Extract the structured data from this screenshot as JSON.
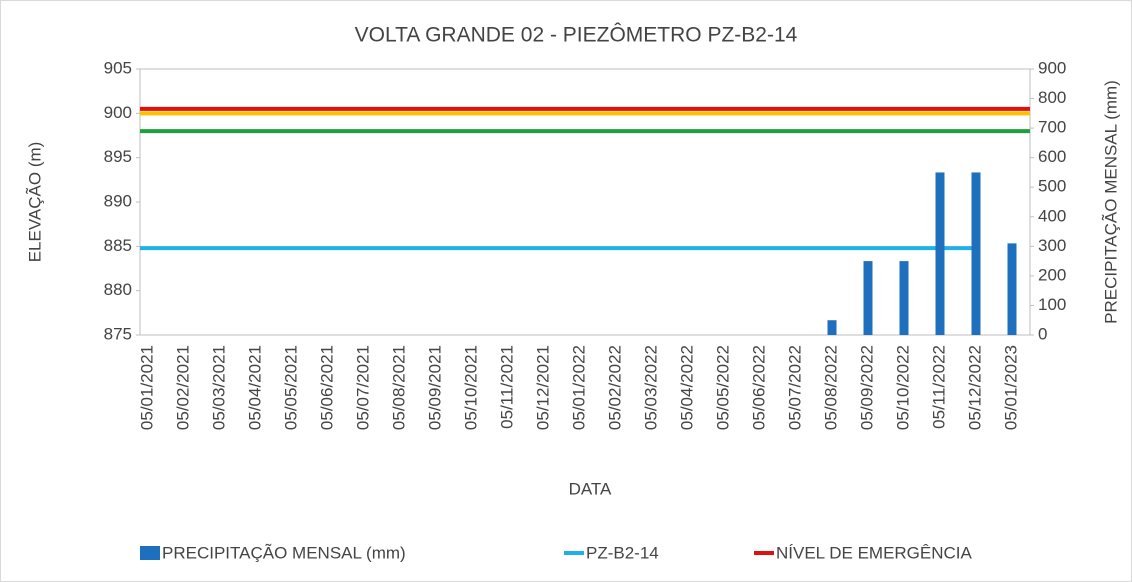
{
  "chart_data": {
    "type": "combo",
    "title": "VOLTA GRANDE 02 - PIEZÔMETRO PZ-B2-14",
    "xlabel": "DATA",
    "ylabel": "ELEVAÇÃO (m)",
    "y2label": "PRECIPITAÇÃO MENSAL (mm)",
    "categories": [
      "05/01/2021",
      "05/02/2021",
      "05/03/2021",
      "05/04/2021",
      "05/05/2021",
      "05/06/2021",
      "05/07/2021",
      "05/08/2021",
      "05/09/2021",
      "05/10/2021",
      "05/11/2021",
      "05/12/2021",
      "05/01/2022",
      "05/02/2022",
      "05/03/2022",
      "05/04/2022",
      "05/05/2022",
      "05/06/2022",
      "05/07/2022",
      "05/08/2022",
      "05/09/2022",
      "05/10/2022",
      "05/11/2022",
      "05/12/2022",
      "05/01/2023"
    ],
    "ylim": [
      875,
      905
    ],
    "yticks": [
      875,
      880,
      885,
      890,
      895,
      900,
      905
    ],
    "y2lim": [
      0,
      900
    ],
    "y2ticks": [
      0,
      100,
      200,
      300,
      400,
      500,
      600,
      700,
      800,
      900
    ],
    "series": [
      {
        "name": "PRECIPITAÇÃO MENSAL (mm)",
        "type": "bar",
        "axis": "y2",
        "color": "#1f6fbf",
        "values": [
          null,
          null,
          null,
          null,
          null,
          null,
          null,
          null,
          null,
          null,
          null,
          null,
          null,
          null,
          null,
          null,
          null,
          null,
          null,
          50,
          250,
          250,
          550,
          550,
          310
        ]
      },
      {
        "name": "PZ-B2-14",
        "type": "line",
        "color": "#1fb0ea",
        "values": [
          884.8,
          884.8,
          884.8,
          884.8,
          884.8,
          884.8,
          884.8,
          884.8,
          884.8,
          884.8,
          884.8,
          884.8,
          884.8,
          884.8,
          884.8,
          884.8,
          884.8,
          884.8,
          884.8,
          884.8,
          884.8,
          884.8,
          884.8,
          884.8,
          null
        ]
      },
      {
        "name": "NÍVEL DE EMERGÊNCIA",
        "type": "line",
        "color": "#e01010",
        "values": [
          900.5,
          900.5,
          900.5,
          900.5,
          900.5,
          900.5,
          900.5,
          900.5,
          900.5,
          900.5,
          900.5,
          900.5,
          900.5,
          900.5,
          900.5,
          900.5,
          900.5,
          900.5,
          900.5,
          900.5,
          900.5,
          900.5,
          900.5,
          900.5,
          900.5
        ]
      },
      {
        "type": "line",
        "color": "#ffc000",
        "values": [
          900,
          900,
          900,
          900,
          900,
          900,
          900,
          900,
          900,
          900,
          900,
          900,
          900,
          900,
          900,
          900,
          900,
          900,
          900,
          900,
          900,
          900,
          900,
          900,
          900
        ]
      },
      {
        "type": "line",
        "color": "#1ea03c",
        "values": [
          898,
          898,
          898,
          898,
          898,
          898,
          898,
          898,
          898,
          898,
          898,
          898,
          898,
          898,
          898,
          898,
          898,
          898,
          898,
          898,
          898,
          898,
          898,
          898,
          898
        ]
      }
    ]
  }
}
